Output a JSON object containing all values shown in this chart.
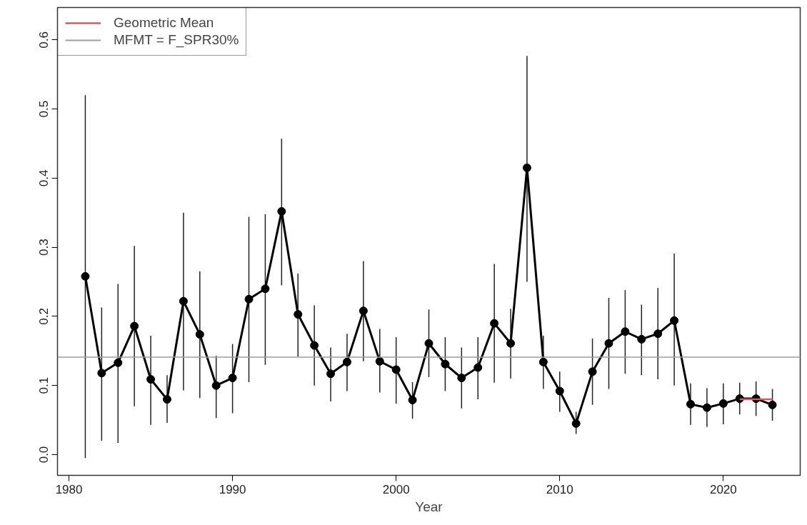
{
  "chart_data": {
    "type": "line",
    "xlabel": "Year",
    "x": [
      1981,
      1982,
      1983,
      1984,
      1985,
      1986,
      1987,
      1988,
      1989,
      1990,
      1991,
      1992,
      1993,
      1994,
      1995,
      1996,
      1997,
      1998,
      1999,
      2000,
      2001,
      2002,
      2003,
      2004,
      2005,
      2006,
      2007,
      2008,
      2009,
      2010,
      2011,
      2012,
      2013,
      2014,
      2015,
      2016,
      2017,
      2018,
      2019,
      2020,
      2021,
      2022,
      2023
    ],
    "series": [
      {
        "color": "#000000",
        "marker": "circle",
        "values": [
          0.258,
          0.118,
          0.133,
          0.186,
          0.109,
          0.08,
          0.222,
          0.174,
          0.1,
          0.111,
          0.225,
          0.24,
          0.352,
          0.203,
          0.158,
          0.117,
          0.134,
          0.208,
          0.135,
          0.123,
          0.079,
          0.161,
          0.131,
          0.111,
          0.126,
          0.19,
          0.161,
          0.415,
          0.134,
          0.092,
          0.045,
          0.12,
          0.161,
          0.178,
          0.167,
          0.175,
          0.194,
          0.073,
          0.068,
          0.074,
          0.081,
          0.081,
          0.072
        ],
        "errors": [
          [
            -0.005,
            0.52
          ],
          [
            0.02,
            0.213
          ],
          [
            0.017,
            0.247
          ],
          [
            0.07,
            0.302
          ],
          [
            0.043,
            0.172
          ],
          [
            0.046,
            0.115
          ],
          [
            0.093,
            0.35
          ],
          [
            0.082,
            0.265
          ],
          [
            0.053,
            0.143
          ],
          [
            0.06,
            0.16
          ],
          [
            0.105,
            0.344
          ],
          [
            0.13,
            0.348
          ],
          [
            0.245,
            0.457
          ],
          [
            0.142,
            0.262
          ],
          [
            0.1,
            0.216
          ],
          [
            0.077,
            0.155
          ],
          [
            0.092,
            0.175
          ],
          [
            0.135,
            0.28
          ],
          [
            0.09,
            0.182
          ],
          [
            0.074,
            0.17
          ],
          [
            0.052,
            0.105
          ],
          [
            0.112,
            0.21
          ],
          [
            0.092,
            0.17
          ],
          [
            0.067,
            0.155
          ],
          [
            0.08,
            0.17
          ],
          [
            0.104,
            0.276
          ],
          [
            0.11,
            0.211
          ],
          [
            0.25,
            0.577
          ],
          [
            0.095,
            0.172
          ],
          [
            0.062,
            0.12
          ],
          [
            0.03,
            0.062
          ],
          [
            0.072,
            0.168
          ],
          [
            0.095,
            0.227
          ],
          [
            0.117,
            0.238
          ],
          [
            0.115,
            0.217
          ],
          [
            0.109,
            0.241
          ],
          [
            0.1,
            0.291
          ],
          [
            0.043,
            0.103
          ],
          [
            0.04,
            0.096
          ],
          [
            0.044,
            0.103
          ],
          [
            0.058,
            0.104
          ],
          [
            0.056,
            0.106
          ],
          [
            0.049,
            0.095
          ]
        ]
      },
      {
        "name": "Geometric Mean",
        "color": "#df536b",
        "marker": "none",
        "x": [
          2021,
          2023
        ],
        "values": [
          0.08,
          0.08
        ]
      }
    ],
    "ref_lines": [
      {
        "axis": "y",
        "value": 0.141,
        "label": "MFMT = F_SPR30%",
        "color": "#9e9e9e"
      }
    ],
    "xlim": [
      1979.3,
      2024.7
    ],
    "ylim": [
      -0.03,
      0.647
    ],
    "xticks": [
      1980,
      1990,
      2000,
      2010,
      2020
    ],
    "yticks": [
      {
        "value": 0,
        "label": "0.0"
      },
      {
        "value": 0.1,
        "label": "0.1"
      },
      {
        "value": 0.2,
        "label": "0.2"
      },
      {
        "value": 0.3,
        "label": "0.3"
      },
      {
        "value": 0.4,
        "label": "0.4"
      },
      {
        "value": 0.5,
        "label": "0.5"
      },
      {
        "value": 0.6,
        "label": "0.6"
      }
    ],
    "grid": false,
    "legend": "top left"
  }
}
